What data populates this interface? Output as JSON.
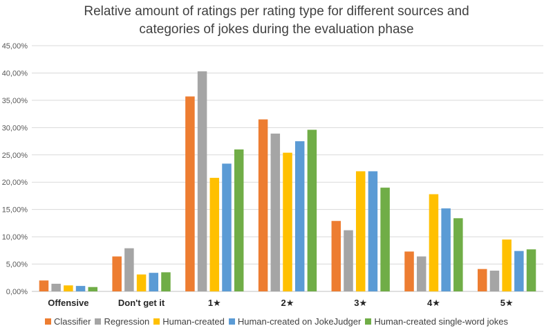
{
  "chart_data": {
    "type": "bar",
    "title_lines": [
      "Relative amount of ratings per rating type for different sources and",
      "categories of jokes during the evaluation phase"
    ],
    "categories": [
      "Offensive",
      "Don't get it",
      "1★",
      "2★",
      "3★",
      "4★",
      "5★"
    ],
    "ylim": [
      0,
      45
    ],
    "yticks": [
      "0,00%",
      "5,00%",
      "10,00%",
      "15,00%",
      "20,00%",
      "25,00%",
      "30,00%",
      "35,00%",
      "40,00%",
      "45,00%"
    ],
    "value_unit": "%",
    "grid": true,
    "legend_position": "bottom",
    "series": [
      {
        "name": "Classifier",
        "color": "#ED7D31",
        "values": [
          2.0,
          6.4,
          35.7,
          31.5,
          12.9,
          7.3,
          4.1
        ]
      },
      {
        "name": "Regression",
        "color": "#A5A5A5",
        "values": [
          1.4,
          7.9,
          40.3,
          28.9,
          11.2,
          6.4,
          3.8
        ]
      },
      {
        "name": "Human-created",
        "color": "#FFC000",
        "values": [
          1.1,
          3.1,
          20.8,
          25.4,
          22.0,
          17.8,
          9.5
        ]
      },
      {
        "name": "Human-created on JokeJudger",
        "color": "#5B9BD5",
        "values": [
          1.0,
          3.4,
          23.4,
          27.5,
          22.0,
          15.2,
          7.4
        ]
      },
      {
        "name": "Human-created single-word jokes",
        "color": "#70AD47",
        "values": [
          0.8,
          3.5,
          26.0,
          29.6,
          19.0,
          13.4,
          7.7
        ]
      }
    ]
  }
}
